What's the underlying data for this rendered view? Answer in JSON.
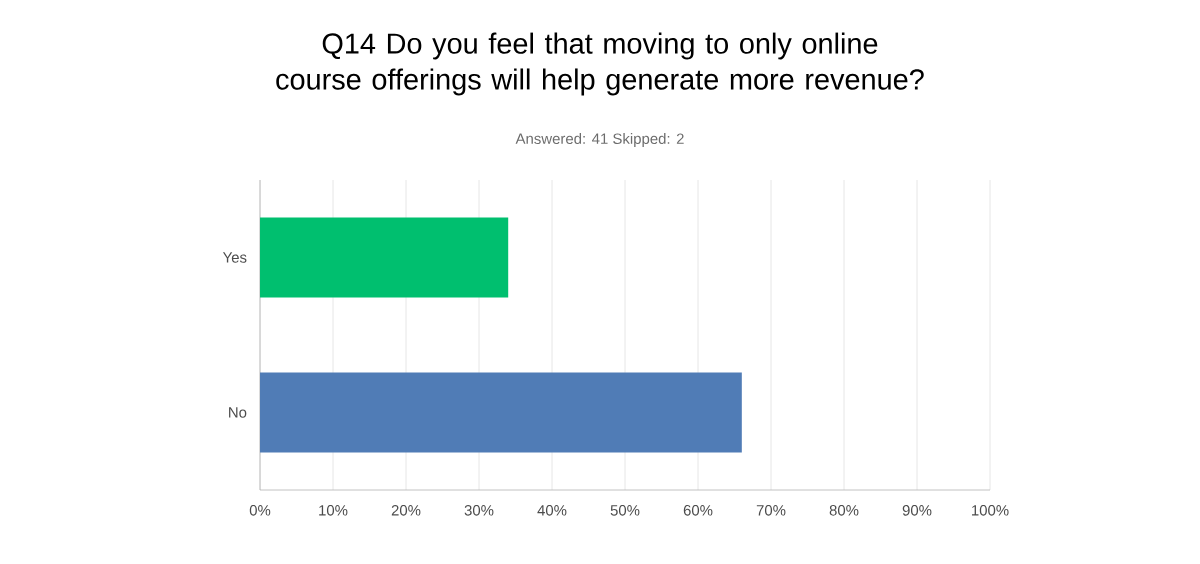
{
  "chart_data": {
    "type": "bar",
    "orientation": "horizontal",
    "title": "Q14 Do you feel that moving to only online course offerings will help generate more revenue?",
    "subtitle": "Answered: 41    Skipped: 2",
    "categories": [
      "Yes",
      "No"
    ],
    "values": [
      34,
      66
    ],
    "colors": [
      "#00bf6f",
      "#507cb6"
    ],
    "xlim": [
      0,
      100
    ],
    "xticks": [
      {
        "value": 0,
        "label": "0%"
      },
      {
        "value": 10,
        "label": "10%"
      },
      {
        "value": 20,
        "label": "20%"
      },
      {
        "value": 30,
        "label": "30%"
      },
      {
        "value": 40,
        "label": "40%"
      },
      {
        "value": 50,
        "label": "50%"
      },
      {
        "value": 60,
        "label": "60%"
      },
      {
        "value": 70,
        "label": "70%"
      },
      {
        "value": 80,
        "label": "80%"
      },
      {
        "value": 90,
        "label": "90%"
      },
      {
        "value": 100,
        "label": "100%"
      }
    ],
    "grid": "x"
  }
}
